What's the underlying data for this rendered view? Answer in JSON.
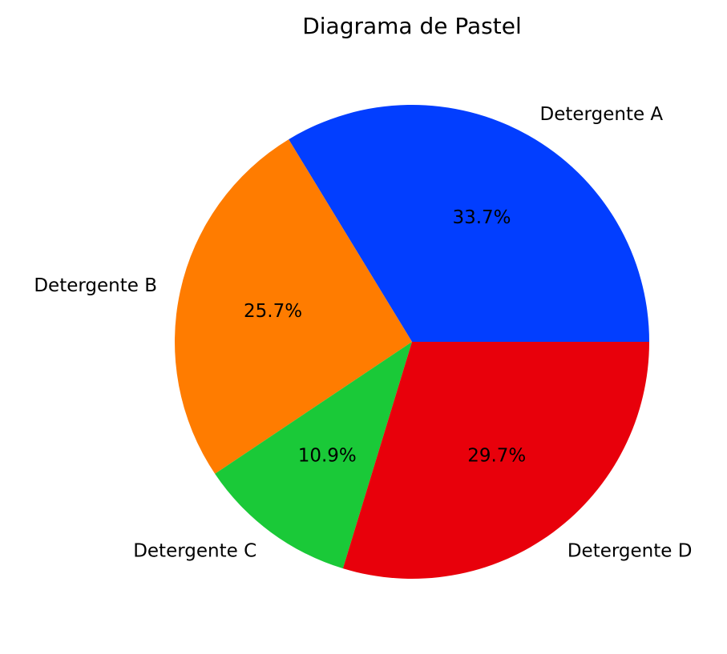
{
  "chart_data": {
    "type": "pie",
    "title": "Diagrama de Pastel",
    "start_angle_deg": 0,
    "direction": "counterclockwise",
    "legend": "none",
    "slices": [
      {
        "label": "Detergente A",
        "value": 33.7,
        "pct_label": "33.7%",
        "color": "#023eff"
      },
      {
        "label": "Detergente B",
        "value": 25.7,
        "pct_label": "25.7%",
        "color": "#ff7c00"
      },
      {
        "label": "Detergente C",
        "value": 10.9,
        "pct_label": "10.9%",
        "color": "#1ac938"
      },
      {
        "label": "Detergente D",
        "value": 29.7,
        "pct_label": "29.7%",
        "color": "#e8000b"
      }
    ]
  }
}
